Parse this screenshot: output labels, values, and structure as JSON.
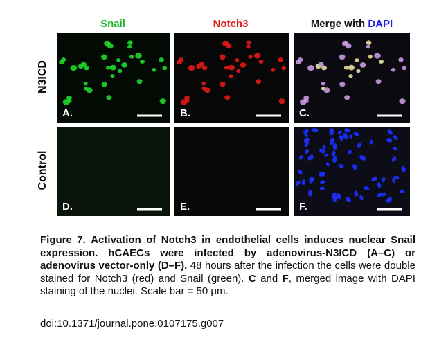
{
  "figure": {
    "columns": [
      "Snail",
      "Notch3",
      "Merge with",
      "DAPI"
    ],
    "rows": [
      "N3ICD",
      "Control"
    ],
    "panels": [
      "A.",
      "B.",
      "C.",
      "D.",
      "E.",
      "F."
    ]
  },
  "caption": {
    "label": "Figure 7.",
    "title": "Activation of Notch3 in endothelial cells induces nuclear Snail expression. hCAECs were infected by adenovirus-N3ICD (A–C) or adenovirus vector-only (D–F).",
    "body": [
      " 48 hours after the infection the cells were double stained for Notch3 (red) and Snail (green). ",
      "C",
      " and ",
      "F",
      ", merged image with DAPI staining of the nuclei. Scale bar = 50 μm."
    ],
    "doi": "doi:10.1371/journal.pone.0107175.g007"
  }
}
